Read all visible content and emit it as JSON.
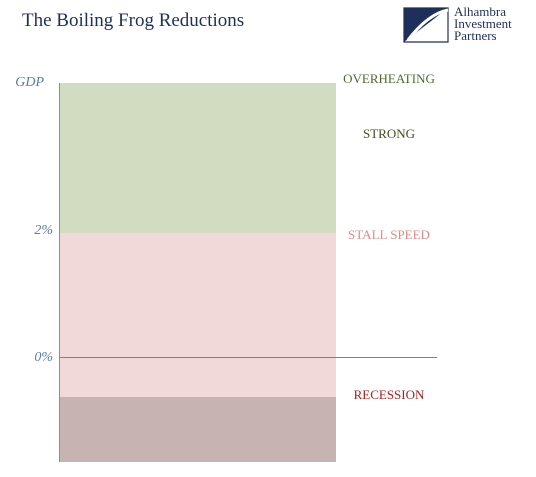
{
  "title": "The Boiling Frog Reductions",
  "logo": {
    "line1": "Alhambra",
    "line2": "Investment",
    "line3": "Partners",
    "colors": {
      "navy": "#1f2f5c"
    }
  },
  "axis": {
    "y_label": "GDP",
    "tick_2": "2%",
    "tick_0": "0%"
  },
  "zones": {
    "overheating": "OVERHEATING",
    "strong": "STRONG",
    "stall_speed": "STALL SPEED",
    "recession": "RECESSION"
  },
  "colors": {
    "strong_band": "#d2dcc0",
    "stall_band": "#f1d9da",
    "recession_band": "#c8b3b3",
    "axis_text": "#5b7da3"
  }
}
